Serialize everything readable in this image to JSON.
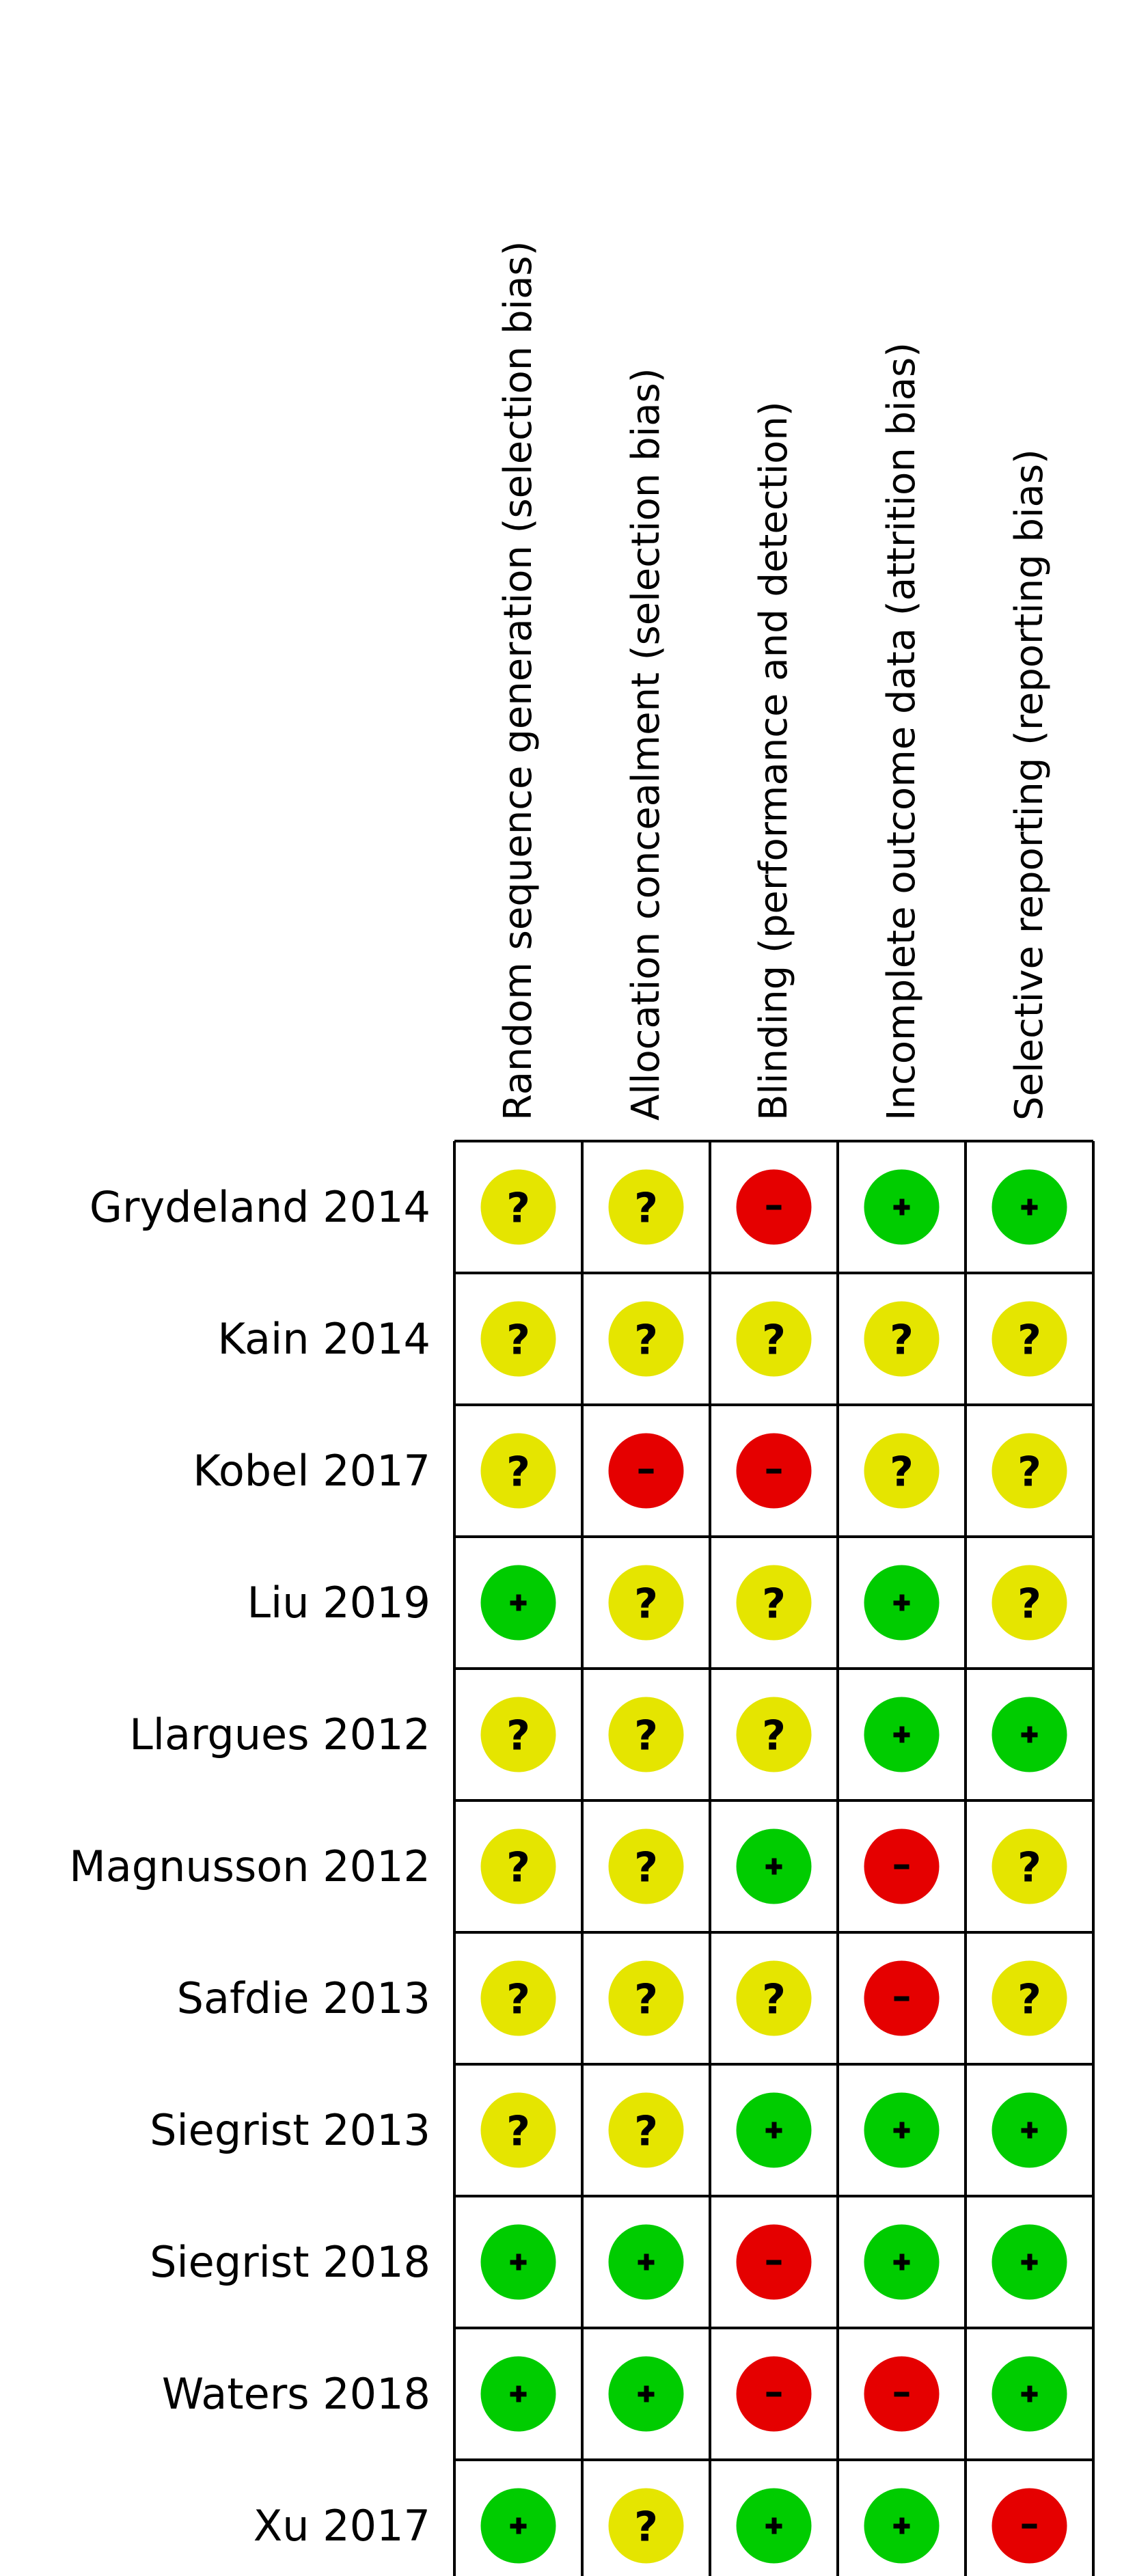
{
  "chart_data": {
    "type": "table",
    "title": "",
    "columns": [
      "Random sequence generation (selection bias)",
      "Allocation concealment (selection bias)",
      "Blinding (performance and detection)",
      "Incomplete outcome data (attrition bias)",
      "Selective reporting (reporting bias)"
    ],
    "rows": [
      {
        "study": "Grydeland 2014",
        "judgements": [
          "?",
          "?",
          "-",
          "+",
          "+"
        ]
      },
      {
        "study": "Kain 2014",
        "judgements": [
          "?",
          "?",
          "?",
          "?",
          "?"
        ]
      },
      {
        "study": "Kobel 2017",
        "judgements": [
          "?",
          "-",
          "-",
          "?",
          "?"
        ]
      },
      {
        "study": "Liu 2019",
        "judgements": [
          "+",
          "?",
          "?",
          "+",
          "?"
        ]
      },
      {
        "study": "Llargues 2012",
        "judgements": [
          "?",
          "?",
          "?",
          "+",
          "+"
        ]
      },
      {
        "study": "Magnusson 2012",
        "judgements": [
          "?",
          "?",
          "+",
          "-",
          "?"
        ]
      },
      {
        "study": "Safdie 2013",
        "judgements": [
          "?",
          "?",
          "?",
          "-",
          "?"
        ]
      },
      {
        "study": "Siegrist 2013",
        "judgements": [
          "?",
          "?",
          "+",
          "+",
          "+"
        ]
      },
      {
        "study": "Siegrist 2018",
        "judgements": [
          "+",
          "+",
          "-",
          "+",
          "+"
        ]
      },
      {
        "study": "Waters 2018",
        "judgements": [
          "+",
          "+",
          "-",
          "-",
          "+"
        ]
      },
      {
        "study": "Xu 2017",
        "judgements": [
          "+",
          "?",
          "+",
          "+",
          "-"
        ]
      }
    ],
    "judgement_colors": {
      "+": "#00cc00",
      "?": "#e5e500",
      "-": "#e50000"
    },
    "grid": true
  }
}
